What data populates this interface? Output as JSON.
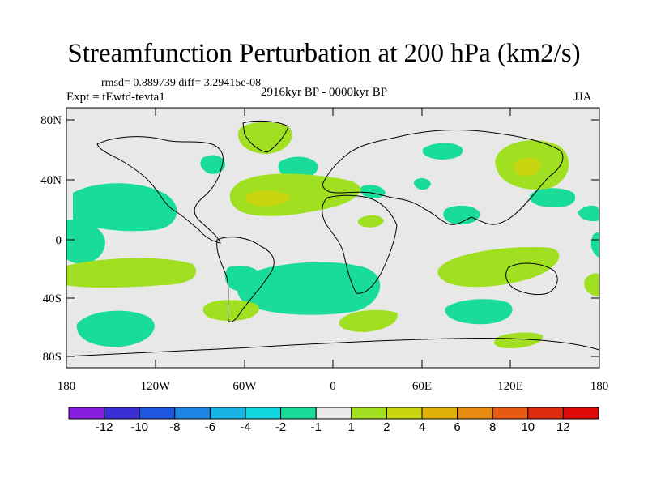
{
  "title": "Streamfunction Perturbation at 200 hPa (km2/s)",
  "stats": "rmsd= 0.889739 diff= 3.29415e-08",
  "expt": "Expt = tEwtd-tevta1",
  "period": "2916kyr BP - 0000kyr BP",
  "season": "JJA",
  "lat_labels": [
    "80N",
    "40N",
    "0",
    "40S",
    "80S"
  ],
  "lon_labels": [
    "180",
    "120W",
    "60W",
    "0",
    "60E",
    "120E",
    "180"
  ],
  "colorbar": {
    "labels": [
      "-12",
      "-10",
      "-8",
      "-6",
      "-4",
      "-2",
      "-1",
      "1",
      "2",
      "4",
      "6",
      "8",
      "10",
      "12"
    ],
    "colors": [
      "#8a1ee0",
      "#3a2fd6",
      "#1e56e0",
      "#1e86e6",
      "#18b4e6",
      "#10d6e0",
      "#18dc98",
      "#e8e8e8",
      "#a0e020",
      "#c8d410",
      "#e0b008",
      "#e88a10",
      "#e85a10",
      "#e02a10",
      "#e00808"
    ]
  },
  "colors": {
    "background": "#e8e8e8",
    "neg1": "#18dc98",
    "neg2": "#10d6e0",
    "pos1": "#a0e020",
    "pos2": "#c8d410"
  }
}
